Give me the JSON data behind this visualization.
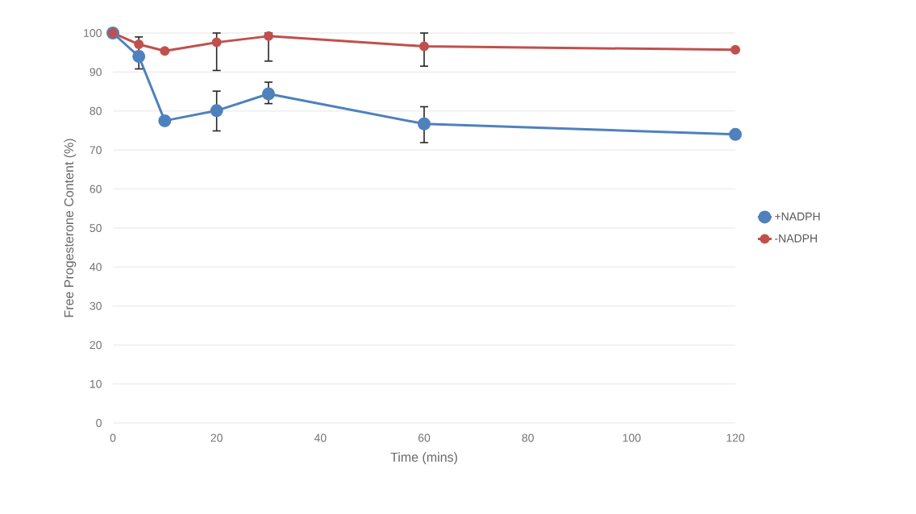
{
  "chart_data": {
    "type": "line",
    "xlabel": "Time (mins)",
    "ylabel": "Free Progesterone Content (%)",
    "x": [
      0,
      5,
      10,
      20,
      30,
      60,
      120
    ],
    "series": [
      {
        "name": "+NADPH",
        "color": "#4f81bd",
        "values": [
          100,
          94.0,
          77.5,
          80.1,
          84.4,
          76.7,
          74.0
        ],
        "errors": [
          null,
          [
            90.8,
            94.0
          ],
          null,
          [
            74.9,
            85.1
          ],
          [
            81.9,
            87.4
          ],
          [
            71.9,
            81.1
          ],
          null
        ]
      },
      {
        "name": "-NADPH",
        "color": "#c0504d",
        "values": [
          100,
          97.1,
          95.4,
          97.6,
          99.2,
          96.6,
          95.7
        ],
        "errors": [
          null,
          [
            95.2,
            99.0
          ],
          null,
          [
            90.4,
            100
          ],
          [
            92.8,
            100
          ],
          [
            91.5,
            100
          ],
          null
        ]
      }
    ],
    "xlim": [
      0,
      120
    ],
    "xticks": [
      0,
      20,
      40,
      60,
      80,
      100,
      120
    ],
    "ylim": [
      0,
      100
    ],
    "yticks": [
      0,
      10,
      20,
      30,
      40,
      50,
      60,
      70,
      80,
      90,
      100
    ],
    "grid": "y",
    "legend": "right",
    "marker": "circle",
    "line_style": "solid"
  }
}
